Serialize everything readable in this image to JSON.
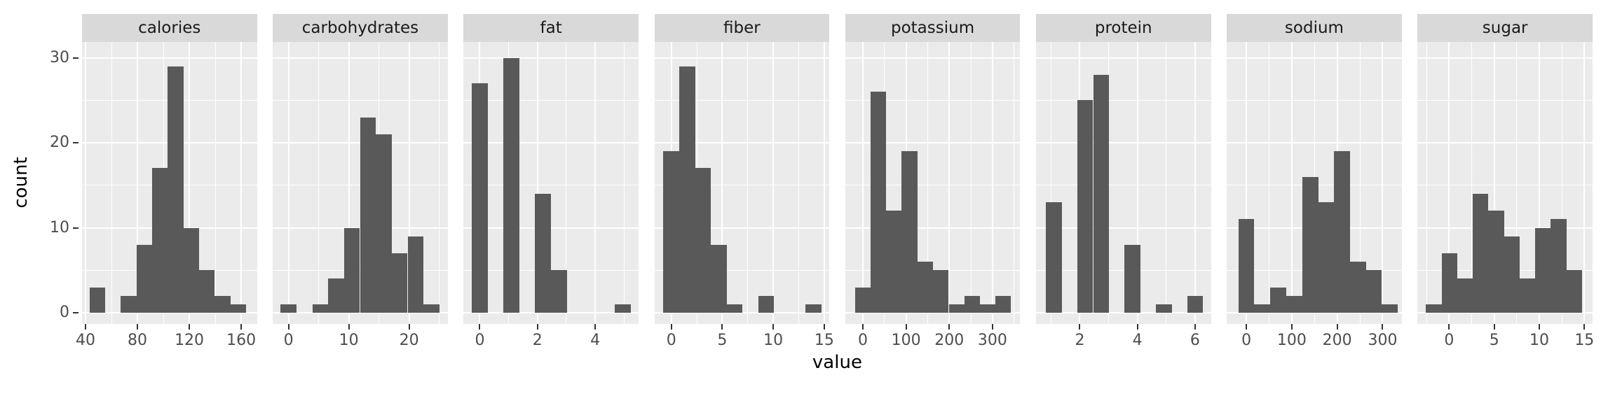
{
  "figure": {
    "y_axis": {
      "label": "count",
      "ticks": [
        "0",
        "10",
        "20",
        "30"
      ],
      "tick_values": [
        0,
        10,
        20,
        30
      ],
      "minor_tick_values": [
        5,
        15,
        25
      ],
      "lim": [
        -1.6,
        31.5
      ]
    },
    "x_axis": {
      "label": "value"
    },
    "colors": {
      "background": "#FFFFFF",
      "panel_background": "#EBEBEB",
      "strip_background": "#D9D9D9",
      "strip_text": "#1A1A1A",
      "bar_fill": "#595959",
      "gridline": "#FFFFFF",
      "tick_label": "#4D4D4D",
      "tick_mark": "#333333",
      "axis_title": "#000000"
    }
  },
  "chart_data": [
    {
      "type": "bar",
      "facet": "calories",
      "x_ticks": [
        "40",
        "80",
        "120",
        "160"
      ],
      "x_tick_values": [
        40,
        80,
        120,
        160
      ],
      "x_minor_values": [
        60,
        100,
        140
      ],
      "xlim": [
        37.3,
        172.1
      ],
      "bin_width": 12.07,
      "bin_centers": [
        49.1,
        73.2,
        85.3,
        97.4,
        109.4,
        121.5,
        133.6,
        145.6,
        157.7
      ],
      "counts": [
        3,
        2,
        8,
        17,
        29,
        10,
        5,
        2,
        1
      ]
    },
    {
      "type": "bar",
      "facet": "carbohydrates",
      "x_ticks": [
        "0",
        "10",
        "20"
      ],
      "x_tick_values": [
        0,
        10,
        20
      ],
      "x_minor_values": [
        5,
        15,
        25
      ],
      "xlim": [
        -2.6,
        26.4
      ],
      "bin_width": 2.63,
      "bin_centers": [
        0,
        5.27,
        7.9,
        10.53,
        13.17,
        15.8,
        18.43,
        21.07,
        23.7
      ],
      "counts": [
        1,
        1,
        4,
        10,
        23,
        21,
        7,
        9,
        1
      ]
    },
    {
      "type": "bar",
      "facet": "fat",
      "x_ticks": [
        "0",
        "2",
        "4"
      ],
      "x_tick_values": [
        0,
        2,
        4
      ],
      "x_minor_values": [
        1,
        3,
        5
      ],
      "xlim": [
        -0.56,
        5.5
      ],
      "bin_width": 0.55,
      "bin_centers": [
        0,
        1.1,
        2.19,
        2.74,
        4.95
      ],
      "counts": [
        27,
        30,
        14,
        5,
        1
      ]
    },
    {
      "type": "bar",
      "facet": "fiber",
      "x_ticks": [
        "0",
        "5",
        "10",
        "15"
      ],
      "x_tick_values": [
        0,
        5,
        10,
        15
      ],
      "x_minor_values": [
        2.5,
        7.5,
        12.5
      ],
      "xlim": [
        -1.66,
        15.5
      ],
      "bin_width": 1.55,
      "bin_centers": [
        0,
        1.55,
        3.1,
        4.65,
        6.2,
        9.3,
        13.95
      ],
      "counts": [
        19,
        29,
        17,
        8,
        1,
        2,
        1
      ]
    },
    {
      "type": "bar",
      "facet": "potassium",
      "x_ticks": [
        "0",
        "100",
        "200",
        "300"
      ],
      "x_tick_values": [
        0,
        100,
        200,
        300
      ],
      "x_minor_values": [
        50,
        150,
        250,
        350
      ],
      "xlim": [
        -41,
        364
      ],
      "bin_width": 36,
      "bin_centers": [
        0,
        36,
        72,
        108,
        144,
        180,
        217,
        253,
        289,
        325
      ],
      "counts": [
        3,
        26,
        12,
        19,
        6,
        5,
        1,
        2,
        1,
        2
      ]
    },
    {
      "type": "bar",
      "facet": "protein",
      "x_ticks": [
        "2",
        "4",
        "6"
      ],
      "x_tick_values": [
        2,
        4,
        6
      ],
      "x_minor_values": [
        1,
        3,
        5
      ],
      "xlim": [
        0.48,
        6.55
      ],
      "bin_width": 0.545,
      "bin_centers": [
        1.1,
        2.19,
        2.74,
        3.83,
        4.92,
        6.01
      ],
      "counts": [
        13,
        25,
        28,
        8,
        1,
        2
      ]
    },
    {
      "type": "bar",
      "facet": "sodium",
      "x_ticks": [
        "0",
        "100",
        "200",
        "300"
      ],
      "x_tick_values": [
        0,
        100,
        200,
        300
      ],
      "x_minor_values": [
        50,
        150,
        250
      ],
      "xlim": [
        -43,
        342
      ],
      "bin_width": 35,
      "bin_centers": [
        0,
        35,
        70,
        106,
        141,
        176,
        211,
        246,
        281,
        316
      ],
      "counts": [
        11,
        1,
        3,
        2,
        16,
        13,
        19,
        6,
        5,
        1
      ]
    },
    {
      "type": "bar",
      "facet": "sugar",
      "x_ticks": [
        "0",
        "5",
        "10",
        "15"
      ],
      "x_tick_values": [
        0,
        5,
        10,
        15
      ],
      "x_minor_values": [
        -2.5,
        2.5,
        7.5,
        12.5
      ],
      "xlim": [
        -3.5,
        15.9
      ],
      "bin_width": 1.73,
      "bin_centers": [
        -1.7,
        0.03,
        1.76,
        3.49,
        5.22,
        6.95,
        8.68,
        10.41,
        12.14,
        13.87
      ],
      "counts": [
        1,
        7,
        4,
        14,
        12,
        9,
        4,
        10,
        11,
        5
      ]
    }
  ]
}
